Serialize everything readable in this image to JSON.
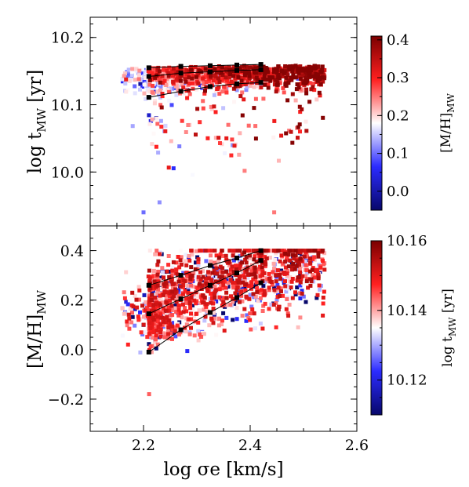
{
  "chart_data": [
    {
      "type": "scatter",
      "panel": "top",
      "xlabel": "log σe [km/s]",
      "ylabel_main": "log t",
      "ylabel_sub": "MW",
      "ylabel_unit": " [yr]",
      "xlim": [
        2.1,
        2.6
      ],
      "ylim": [
        9.92,
        10.23
      ],
      "yticks": [
        {
          "v": 10.0,
          "label": "10.0"
        },
        {
          "v": 10.1,
          "label": "10.1"
        },
        {
          "v": 10.2,
          "label": "10.2"
        }
      ],
      "colorbar": {
        "label_main": "[M/H]",
        "label_sub": "MW",
        "range": [
          -0.05,
          0.41
        ],
        "ticks": [
          {
            "v": 0.0,
            "label": "0.0"
          },
          {
            "v": 0.1,
            "label": "0.1"
          },
          {
            "v": 0.2,
            "label": "0.2"
          },
          {
            "v": 0.3,
            "label": "0.3"
          },
          {
            "v": 0.4,
            "label": "0.4"
          }
        ],
        "colors": [
          "#08086b",
          "#2b2bff",
          "#ffffff",
          "#ff2020",
          "#7a0000"
        ]
      },
      "binned_lines": [
        {
          "x": [
            2.21,
            2.27,
            2.325,
            2.375,
            2.42
          ],
          "y": [
            10.155,
            10.157,
            10.158,
            10.159,
            10.16
          ]
        },
        {
          "x": [
            2.21,
            2.27,
            2.325,
            2.375,
            2.42
          ],
          "y": [
            10.142,
            10.147,
            10.149,
            10.151,
            10.152
          ]
        },
        {
          "x": [
            2.21,
            2.27,
            2.325,
            2.375,
            2.42
          ],
          "y": [
            10.111,
            10.12,
            10.127,
            10.131,
            10.133
          ]
        }
      ],
      "n_points": 1500
    },
    {
      "type": "scatter",
      "panel": "bottom",
      "xlabel": "log σe [km/s]",
      "ylabel_main": "[M/H]",
      "ylabel_sub": "MW",
      "xlim": [
        2.1,
        2.6
      ],
      "ylim": [
        -0.33,
        0.5
      ],
      "xticks": [
        {
          "v": 2.2,
          "label": "2.2"
        },
        {
          "v": 2.4,
          "label": "2.4"
        },
        {
          "v": 2.6,
          "label": "2.6"
        }
      ],
      "yticks": [
        {
          "v": -0.2,
          "label": "−0.2"
        },
        {
          "v": 0.0,
          "label": "0.0"
        },
        {
          "v": 0.2,
          "label": "0.2"
        },
        {
          "v": 0.4,
          "label": "0.4"
        }
      ],
      "colorbar": {
        "label_main": "log t",
        "label_sub": "MW",
        "label_unit": " [yr]",
        "range": [
          10.11,
          10.16
        ],
        "ticks": [
          {
            "v": 10.12,
            "label": "10.12"
          },
          {
            "v": 10.14,
            "label": "10.14"
          },
          {
            "v": 10.16,
            "label": "10.16"
          }
        ],
        "colors": [
          "#08086b",
          "#2b2bff",
          "#ffffff",
          "#ff2020",
          "#7a0000"
        ]
      },
      "binned_lines": [
        {
          "x": [
            2.21,
            2.27,
            2.325,
            2.375,
            2.42
          ],
          "y": [
            0.26,
            0.3,
            0.34,
            0.37,
            0.4
          ]
        },
        {
          "x": [
            2.21,
            2.27,
            2.325,
            2.375,
            2.42
          ],
          "y": [
            0.145,
            0.205,
            0.26,
            0.31,
            0.36
          ]
        },
        {
          "x": [
            2.21,
            2.27,
            2.325,
            2.375,
            2.42
          ],
          "y": [
            -0.01,
            0.08,
            0.15,
            0.21,
            0.27
          ]
        }
      ],
      "n_points": 1500
    }
  ]
}
